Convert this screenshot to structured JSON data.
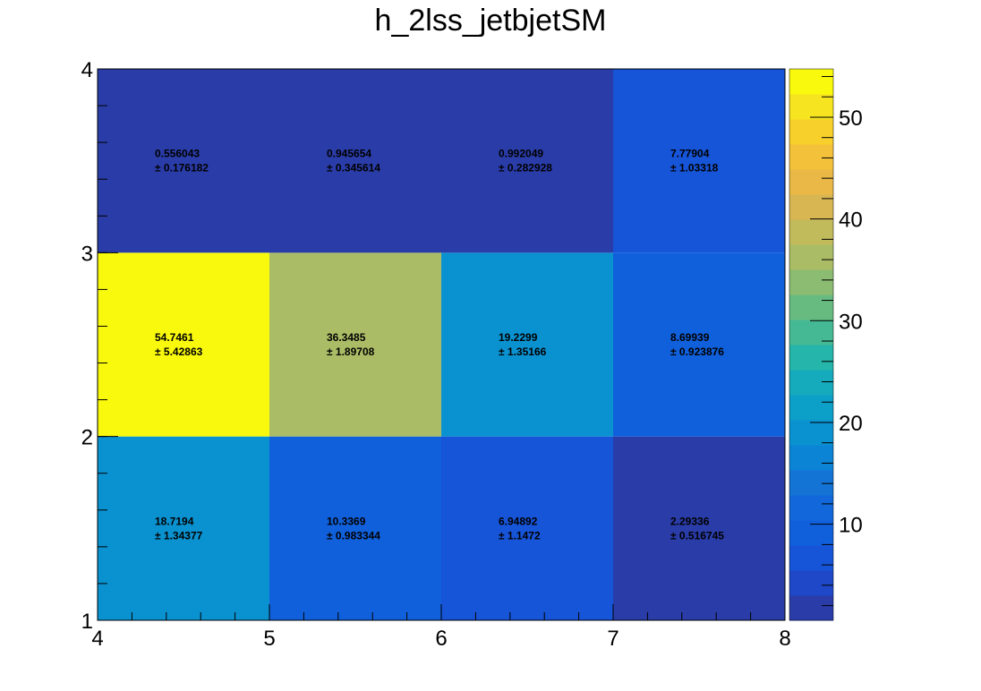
{
  "chart_data": {
    "type": "heatmap",
    "title": "h_2lss_jetbjetSM",
    "x_edges": [
      4,
      5,
      6,
      7,
      8
    ],
    "y_edges": [
      1,
      2,
      3,
      4
    ],
    "xlim": [
      4,
      8
    ],
    "ylim": [
      1,
      4
    ],
    "x_ticks": [
      "4",
      "5",
      "6",
      "7",
      "8"
    ],
    "y_ticks": [
      "1",
      "2",
      "3",
      "4"
    ],
    "cells": [
      {
        "x": 4.5,
        "y": 1.5,
        "value": "18.7194",
        "error": "± 1.34377",
        "z": 18.7194
      },
      {
        "x": 5.5,
        "y": 1.5,
        "value": "10.3369",
        "error": "± 0.983344",
        "z": 10.3369
      },
      {
        "x": 6.5,
        "y": 1.5,
        "value": "6.94892",
        "error": "± 1.1472",
        "z": 6.94892
      },
      {
        "x": 7.5,
        "y": 1.5,
        "value": "2.29336",
        "error": "± 0.516745",
        "z": 2.29336
      },
      {
        "x": 4.5,
        "y": 2.5,
        "value": "54.7461",
        "error": "± 5.42863",
        "z": 54.7461
      },
      {
        "x": 5.5,
        "y": 2.5,
        "value": "36.3485",
        "error": "± 1.89708",
        "z": 36.3485
      },
      {
        "x": 6.5,
        "y": 2.5,
        "value": "19.2299",
        "error": "± 1.35166",
        "z": 19.2299
      },
      {
        "x": 7.5,
        "y": 2.5,
        "value": "8.69939",
        "error": "± 0.923876",
        "z": 8.69939
      },
      {
        "x": 4.5,
        "y": 3.5,
        "value": "0.556043",
        "error": "± 0.176182",
        "z": 0.556043
      },
      {
        "x": 5.5,
        "y": 3.5,
        "value": "0.945654",
        "error": "± 0.345614",
        "z": 0.945654
      },
      {
        "x": 6.5,
        "y": 3.5,
        "value": "0.992049",
        "error": "± 0.282928",
        "z": 0.992049
      },
      {
        "x": 7.5,
        "y": 3.5,
        "value": "7.77904",
        "error": "± 1.03318",
        "z": 7.77904
      }
    ],
    "colorbar": {
      "zlim": [
        0.556043,
        54.7461
      ],
      "ticks": [
        10,
        20,
        30,
        40,
        50
      ],
      "tick_labels": [
        "10",
        "20",
        "30",
        "40",
        "50"
      ],
      "colors": [
        "#2a3ca8",
        "#1e48c8",
        "#1654d8",
        "#1060dc",
        "#1268da",
        "#1474d6",
        "#0c84d6",
        "#0a92d0",
        "#0c9fc8",
        "#16abbc",
        "#26b5aa",
        "#44b994",
        "#68bb80",
        "#8cbc72",
        "#aabd66",
        "#c2bb5c",
        "#d8b652",
        "#eab846",
        "#f4c23a",
        "#f8d02c",
        "#f6e420",
        "#f9f90e"
      ]
    }
  }
}
